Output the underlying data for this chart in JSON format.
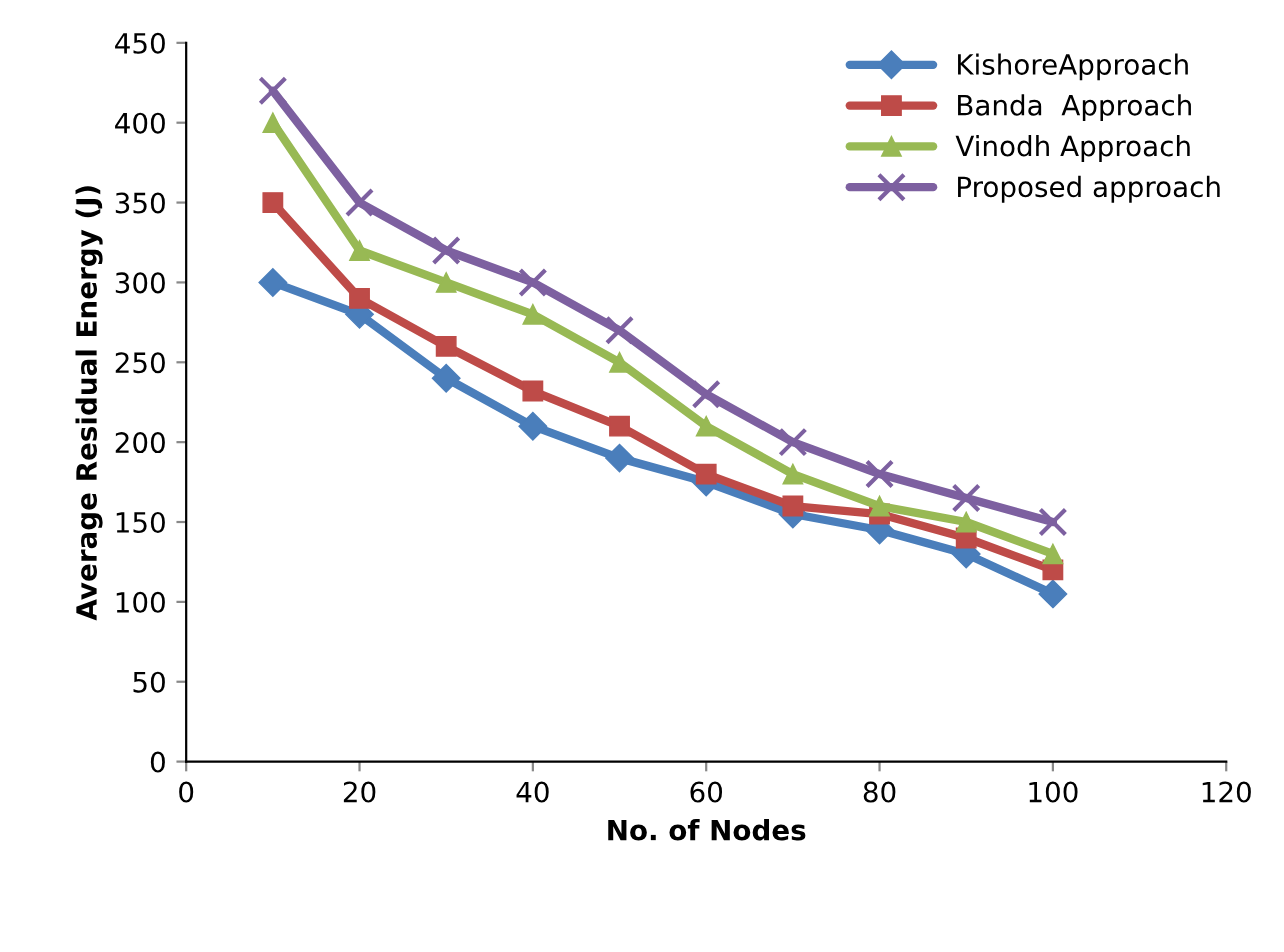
{
  "chart_data": {
    "type": "line",
    "xlabel": "No. of Nodes",
    "ylabel": "Average Residual Energy (J)",
    "x": [
      10,
      20,
      30,
      40,
      50,
      60,
      70,
      80,
      90,
      100
    ],
    "series": [
      {
        "name": "KishoreApproach",
        "color": "#4a7ebb",
        "marker": "diamond",
        "values": [
          300,
          280,
          240,
          210,
          190,
          175,
          155,
          145,
          130,
          105
        ]
      },
      {
        "name": "Banda  Approach",
        "color": "#be4b48",
        "marker": "square",
        "values": [
          350,
          290,
          260,
          232,
          210,
          180,
          160,
          155,
          140,
          120
        ]
      },
      {
        "name": "Vinodh Approach",
        "color": "#98b954",
        "marker": "triangle",
        "values": [
          400,
          320,
          300,
          280,
          250,
          210,
          180,
          160,
          150,
          130
        ]
      },
      {
        "name": "Proposed approach",
        "color": "#7d60a0",
        "marker": "cross",
        "values": [
          420,
          350,
          320,
          300,
          270,
          230,
          200,
          180,
          165,
          150
        ]
      }
    ],
    "xlim": [
      0,
      120
    ],
    "xticks": [
      0,
      20,
      40,
      60,
      80,
      100,
      120
    ],
    "ylim": [
      0,
      450
    ],
    "yticks": [
      0,
      50,
      100,
      150,
      200,
      250,
      300,
      350,
      400,
      450
    ],
    "grid": false,
    "legend": "top right",
    "line_style": "solid"
  }
}
